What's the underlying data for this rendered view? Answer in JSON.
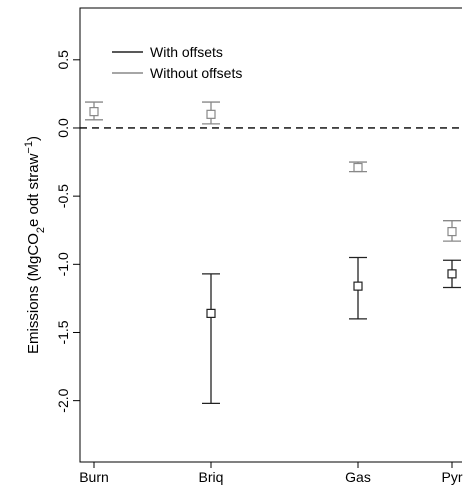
{
  "chart_data": {
    "type": "scatter",
    "categories": [
      "Burn",
      "Briq",
      "Gas",
      "Pyr"
    ],
    "ylabel_main": "Emissions (MgCO",
    "ylabel_sub": "2",
    "ylabel_mid": "e odt straw",
    "ylabel_sup": "−1",
    "ylabel_end": ")",
    "ylim": [
      -2.45,
      0.88
    ],
    "yticks": [
      {
        "value": 0.5,
        "label": "0.5"
      },
      {
        "value": 0.0,
        "label": "0.0"
      },
      {
        "value": -0.5,
        "label": "-0.5"
      },
      {
        "value": -1.0,
        "label": "-1.0"
      },
      {
        "value": -1.5,
        "label": "-1.5"
      },
      {
        "value": -2.0,
        "label": "-2.0"
      }
    ],
    "reference_line": 0.0,
    "legend_position": "top-left",
    "series": [
      {
        "name": "With offsets",
        "color": "#222222",
        "points": [
          {
            "category": "Briq",
            "value": -1.36,
            "low": -2.02,
            "high": -1.07
          },
          {
            "category": "Gas",
            "value": -1.16,
            "low": -1.4,
            "high": -0.95
          },
          {
            "category": "Pyr",
            "value": -1.07,
            "low": -1.17,
            "high": -0.97
          }
        ]
      },
      {
        "name": "Without offsets",
        "color": "#888888",
        "points": [
          {
            "category": "Burn",
            "value": 0.12,
            "low": 0.06,
            "high": 0.19
          },
          {
            "category": "Briq",
            "value": 0.1,
            "low": 0.03,
            "high": 0.19
          },
          {
            "category": "Gas",
            "value": -0.29,
            "low": -0.32,
            "high": -0.25
          },
          {
            "category": "Pyr",
            "value": -0.76,
            "low": -0.83,
            "high": -0.68
          }
        ]
      }
    ]
  }
}
